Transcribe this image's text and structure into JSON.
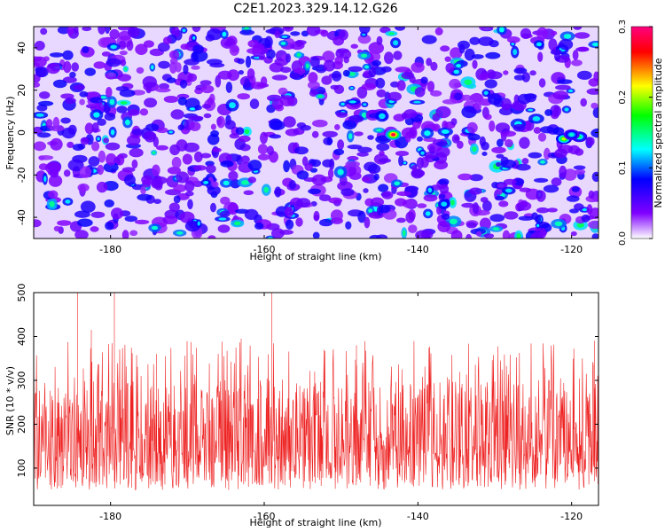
{
  "title": "C2E1.2023.329.14.12.G26",
  "chart_data": [
    {
      "type": "heatmap",
      "xlabel": "Height of straight line (km)",
      "ylabel": "Frequency (Hz)",
      "xlim": [
        -190,
        -116.5
      ],
      "ylim": [
        -50,
        50
      ],
      "xticks": [
        -180,
        -160,
        -140,
        -120
      ],
      "yticks": [
        -40,
        -20,
        0,
        20,
        40
      ],
      "colorbar": {
        "label": "Normalized spectral amplitude",
        "range": [
          0,
          0.3
        ],
        "ticks": [
          0.0,
          0.1,
          0.2,
          0.3
        ],
        "colors": [
          "#ffffff",
          "#8000ff",
          "#0000ff",
          "#00ffff",
          "#00ff00",
          "#ffff00",
          "#ff0000",
          "#ff0080"
        ]
      },
      "background_level": 0.04,
      "notable_peaks": [
        {
          "x": -143.2,
          "y": -1,
          "value": 0.27
        },
        {
          "x": -121,
          "y": -3,
          "value": 0.19
        },
        {
          "x": -119,
          "y": -2,
          "value": 0.14
        },
        {
          "x": -120,
          "y": -1,
          "value": 0.12
        }
      ],
      "grid": false
    },
    {
      "type": "line",
      "xlabel": "Height of straight line (km)",
      "ylabel": "SNR (10 * v/v)",
      "xlim": [
        -190,
        -116.5
      ],
      "ylim": [
        15,
        500
      ],
      "xticks": [
        -180,
        -160,
        -140,
        -120
      ],
      "yticks": [
        100,
        200,
        300,
        400,
        500
      ],
      "series": [
        {
          "color": "#ee2222",
          "summary": {
            "median": 150,
            "typical_low": 50,
            "typical_high": 300
          }
        }
      ],
      "spikes": [
        {
          "x": -184.3,
          "y": 500
        },
        {
          "x": -182.5,
          "y": 415
        },
        {
          "x": -179.5,
          "y": 500
        },
        {
          "x": -159.0,
          "y": 500
        },
        {
          "x": -148.0,
          "y": 380
        },
        {
          "x": -163.0,
          "y": 395
        },
        {
          "x": -174.0,
          "y": 360
        },
        {
          "x": -117.0,
          "y": 390
        }
      ],
      "grid": false
    }
  ]
}
